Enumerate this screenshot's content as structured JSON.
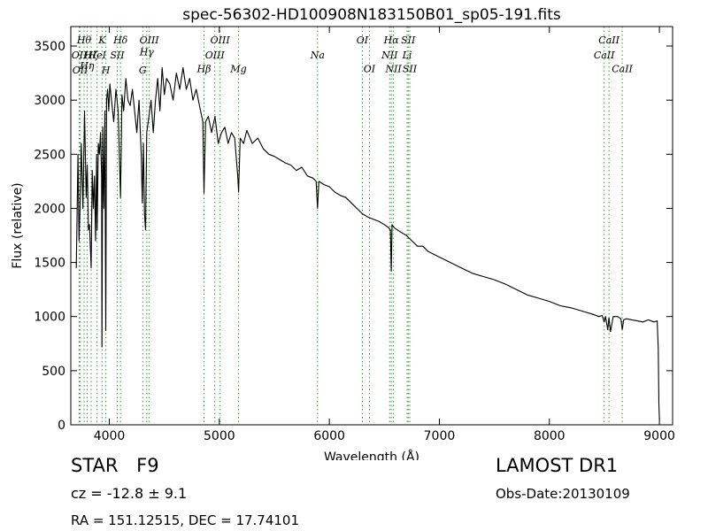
{
  "chart_data": {
    "type": "line",
    "title": "spec-56302-HD100908N183150B01_sp05-191.fits",
    "xlabel": "Wavelength (Å)",
    "ylabel": "Flux (relative)",
    "xlim": [
      3650,
      9120
    ],
    "ylim": [
      0,
      3680
    ],
    "x_ticks": [
      4000,
      5000,
      6000,
      7000,
      8000,
      9000
    ],
    "x_tick_labels": [
      "4000",
      "5000",
      "6000",
      "7000",
      "8000",
      "9000"
    ],
    "y_ticks": [
      0,
      500,
      1000,
      1500,
      2000,
      2500,
      3000,
      3500
    ],
    "y_tick_labels": [
      "0",
      "500",
      "1000",
      "1500",
      "2000",
      "2500",
      "3000",
      "3500"
    ],
    "grid": false,
    "line_color": "#000000",
    "marker_color": "#2ca02c",
    "series": [
      {
        "x": [
          3700,
          3715,
          3725,
          3735,
          3745,
          3760,
          3775,
          3790,
          3800,
          3810,
          3820,
          3835,
          3845,
          3855,
          3865,
          3875,
          3885,
          3890,
          3900,
          3910,
          3920,
          3930,
          3933,
          3940,
          3950,
          3960,
          3968,
          3975,
          3985,
          3995,
          4005,
          4020,
          4040,
          4060,
          4080,
          4102,
          4115,
          4130,
          4150,
          4170,
          4190,
          4210,
          4230,
          4250,
          4270,
          4290,
          4300,
          4310,
          4320,
          4330,
          4340,
          4360,
          4380,
          4400,
          4420,
          4440,
          4460,
          4480,
          4500,
          4520,
          4550,
          4580,
          4610,
          4640,
          4670,
          4700,
          4730,
          4760,
          4790,
          4820,
          4850,
          4861,
          4875,
          4900,
          4930,
          4960,
          4990,
          5020,
          5050,
          5080,
          5110,
          5140,
          5167,
          5175,
          5190,
          5220,
          5250,
          5300,
          5350,
          5400,
          5450,
          5500,
          5550,
          5600,
          5650,
          5700,
          5750,
          5800,
          5850,
          5880,
          5893,
          5905,
          5950,
          6000,
          6050,
          6100,
          6150,
          6200,
          6250,
          6300,
          6350,
          6400,
          6450,
          6500,
          6540,
          6555,
          6563,
          6570,
          6590,
          6620,
          6650,
          6700,
          6750,
          6800,
          6850,
          6900,
          7000,
          7100,
          7200,
          7300,
          7400,
          7500,
          7600,
          7700,
          7800,
          7900,
          8000,
          8100,
          8200,
          8300,
          8400,
          8450,
          8480,
          8498,
          8510,
          8530,
          8542,
          8555,
          8580,
          8620,
          8650,
          8662,
          8675,
          8700,
          8750,
          8800,
          8850,
          8900,
          8950,
          8980,
          8990,
          8995,
          9000
        ],
        "y": [
          1450,
          2500,
          1700,
          2050,
          2600,
          2000,
          2900,
          2100,
          2400,
          1800,
          1850,
          1450,
          2350,
          2000,
          2300,
          1700,
          2500,
          1800,
          2600,
          2500,
          2700,
          2300,
          720,
          2750,
          2000,
          2900,
          870,
          3000,
          3100,
          2900,
          3150,
          3000,
          2800,
          3100,
          2900,
          2100,
          3050,
          2900,
          3200,
          3000,
          2950,
          3100,
          2900,
          2700,
          3000,
          2500,
          2050,
          2600,
          1950,
          1800,
          2700,
          2850,
          3000,
          2700,
          3000,
          3200,
          2900,
          3300,
          3050,
          3200,
          3150,
          3000,
          3250,
          3100,
          3300,
          3100,
          3200,
          3000,
          3100,
          2950,
          2800,
          2140,
          2800,
          2850,
          2700,
          2850,
          2600,
          2700,
          2750,
          2600,
          2700,
          2650,
          2300,
          2150,
          2650,
          2600,
          2720,
          2600,
          2650,
          2550,
          2500,
          2480,
          2450,
          2420,
          2400,
          2350,
          2380,
          2300,
          2280,
          2250,
          2000,
          2250,
          2220,
          2200,
          2150,
          2120,
          2100,
          2050,
          2000,
          1950,
          1920,
          1900,
          1880,
          1850,
          1820,
          1800,
          1420,
          1850,
          1820,
          1800,
          1780,
          1750,
          1700,
          1650,
          1650,
          1600,
          1550,
          1500,
          1450,
          1400,
          1370,
          1340,
          1300,
          1250,
          1200,
          1170,
          1140,
          1100,
          1080,
          1050,
          1020,
          1000,
          1010,
          950,
          1000,
          880,
          990,
          860,
          1000,
          1000,
          980,
          880,
          970,
          980,
          970,
          960,
          950,
          970,
          950,
          960,
          700,
          200,
          50
        ]
      }
    ],
    "line_markers": [
      {
        "x": 3727,
        "label": "OII",
        "row": 1
      },
      {
        "x": 3735,
        "label": "OII",
        "row": 2
      },
      {
        "x": 3771,
        "label": "Hθ",
        "row": 0
      },
      {
        "x": 3798,
        "label": "Hη",
        "row": 1.7
      },
      {
        "x": 3835,
        "label": "Hζ",
        "row": 1
      },
      {
        "x": 3889,
        "label": "HeI",
        "row": 1
      },
      {
        "x": 3934,
        "label": "K",
        "row": 0
      },
      {
        "x": 3969,
        "label": "H",
        "row": 2
      },
      {
        "x": 4072,
        "label": "SII",
        "row": 1
      },
      {
        "x": 4102,
        "label": "Hδ",
        "row": 0
      },
      {
        "x": 4304,
        "label": "G",
        "row": 2
      },
      {
        "x": 4340,
        "label": "Hγ",
        "row": 0.8
      },
      {
        "x": 4363,
        "label": "OIII",
        "row": 0
      },
      {
        "x": 4861,
        "label": "Hβ",
        "row": 1.9
      },
      {
        "x": 4959,
        "label": "OIII",
        "row": 1
      },
      {
        "x": 5007,
        "label": "OIII",
        "row": 0
      },
      {
        "x": 5175,
        "label": "Mg",
        "row": 1.9
      },
      {
        "x": 5893,
        "label": "Na",
        "row": 1
      },
      {
        "x": 6300,
        "label": "OI",
        "row": 0
      },
      {
        "x": 6364,
        "label": "OI",
        "row": 1.9
      },
      {
        "x": 6548,
        "label": "NII",
        "row": 1
      },
      {
        "x": 6563,
        "label": "Hα",
        "row": 0
      },
      {
        "x": 6583,
        "label": "NII",
        "row": 1.9
      },
      {
        "x": 6707,
        "label": "Li",
        "row": 1
      },
      {
        "x": 6717,
        "label": "SII",
        "row": 0
      },
      {
        "x": 6731,
        "label": "SII",
        "row": 1.9
      },
      {
        "x": 8498,
        "label": "CaII",
        "row": 1
      },
      {
        "x": 8542,
        "label": "CaII",
        "row": 0
      },
      {
        "x": 8662,
        "label": "CaII",
        "row": 1.9
      }
    ]
  },
  "info": {
    "object_class": "STAR",
    "subclass": "F9",
    "survey": "LAMOST DR1",
    "redshift": "cz = -12.8 ± 9.1",
    "obs_date": "Obs-Date:20130109",
    "coords": "RA = 151.12515, DEC = 17.74101"
  }
}
